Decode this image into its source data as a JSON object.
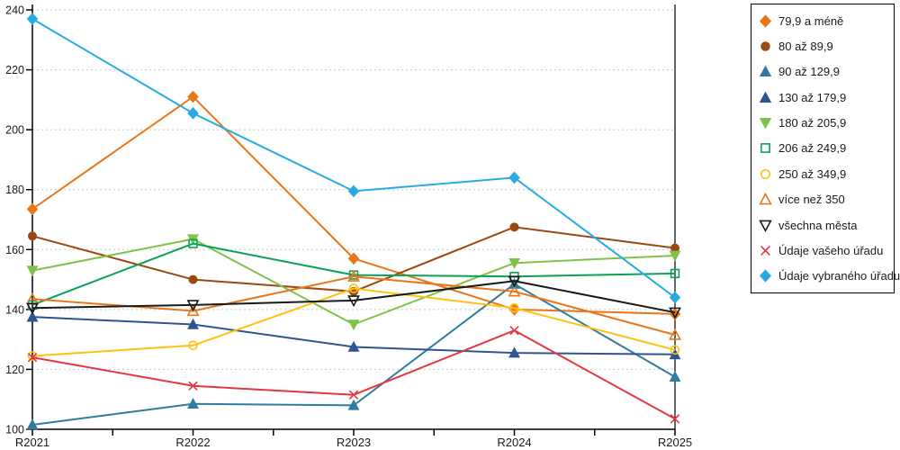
{
  "chart_data": {
    "type": "line",
    "title": "",
    "categories": [
      "R2021",
      "R2022",
      "R2023",
      "R2024",
      "R2025"
    ],
    "ylim": [
      100,
      240
    ],
    "yticks": [
      "100",
      "120",
      "140",
      "160",
      "180",
      "200",
      "220",
      "240"
    ],
    "grid": "horizontal-dashed",
    "legend_position": "right",
    "axis_color": "#000000",
    "gridline_color": "#c6c6c6",
    "series": [
      {
        "name": "79,9 a méně",
        "color": "#E8761B",
        "marker": "diamond",
        "filled": true,
        "values": [
          173.5,
          211,
          157,
          140,
          138.5
        ]
      },
      {
        "name": "80 až 89,9",
        "color": "#9A4A10",
        "marker": "circle",
        "filled": true,
        "values": [
          164.5,
          150,
          146,
          167.5,
          160.5
        ]
      },
      {
        "name": "90 až 129,9",
        "color": "#2E7D9E",
        "marker": "triangle-up",
        "filled": true,
        "values": [
          101.5,
          108.5,
          108,
          148.5,
          117.5
        ]
      },
      {
        "name": "130 až 179,9",
        "color": "#2F5591",
        "marker": "triangle-up",
        "filled": true,
        "values": [
          137.5,
          135,
          127.5,
          125.5,
          125
        ]
      },
      {
        "name": "180 až 205,9",
        "color": "#7FC24A",
        "marker": "triangle-down",
        "filled": true,
        "values": [
          153,
          163.5,
          135,
          155.5,
          158
        ]
      },
      {
        "name": "206 až 249,9",
        "color": "#0CA15A",
        "marker": "square",
        "filled": false,
        "values": [
          141.5,
          162,
          151.5,
          151,
          152
        ]
      },
      {
        "name": "250 až 349,9",
        "color": "#FFC20E",
        "marker": "circle",
        "filled": false,
        "values": [
          124.5,
          128,
          147,
          140.5,
          126.5
        ]
      },
      {
        "name": "více než 350",
        "color": "#E8761B",
        "marker": "triangle-up",
        "filled": false,
        "values": [
          143.5,
          139.5,
          151,
          146,
          131.5
        ]
      },
      {
        "name": "všechna města",
        "color": "#1A1A1A",
        "marker": "triangle-down",
        "filled": false,
        "values": [
          140.5,
          141.5,
          143,
          149.5,
          139
        ]
      },
      {
        "name": "Údaje vašeho úřadu",
        "color": "#E2383E",
        "marker": "x",
        "filled": false,
        "values": [
          124,
          114.5,
          111.5,
          133,
          103.5
        ]
      },
      {
        "name": "Údaje vybraného úřadu",
        "color": "#29ABE2",
        "marker": "diamond",
        "filled": true,
        "values": [
          237,
          205.5,
          179.5,
          184,
          144
        ]
      }
    ]
  }
}
